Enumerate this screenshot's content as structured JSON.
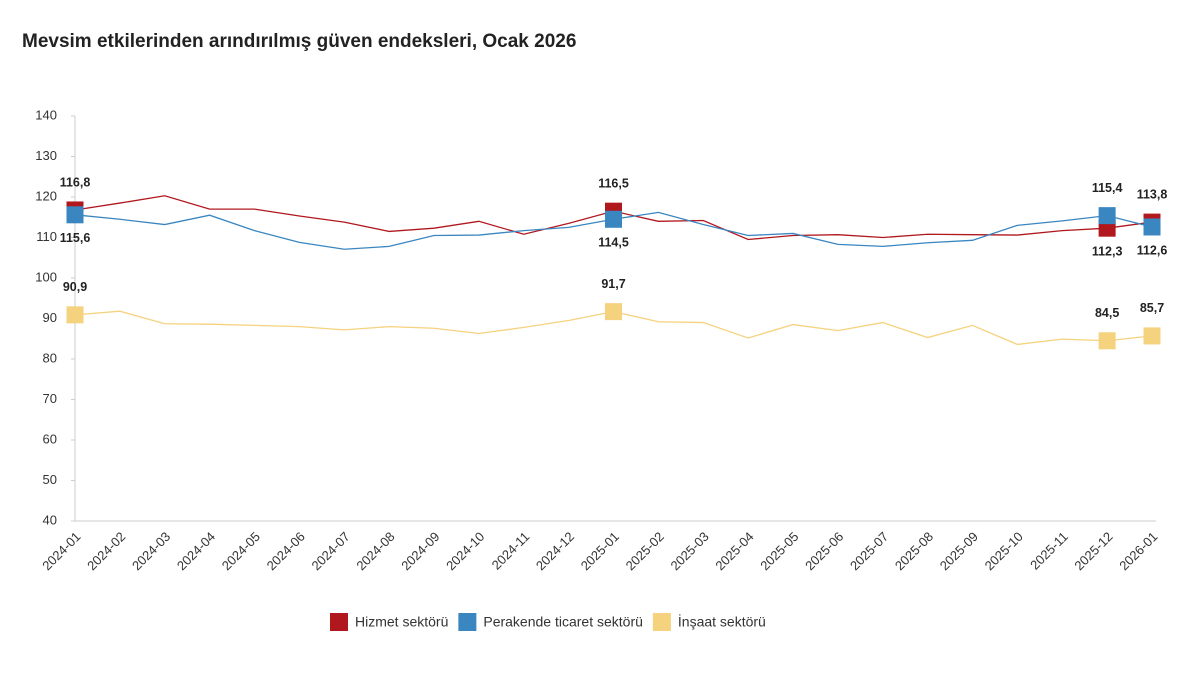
{
  "chart_data": {
    "type": "line",
    "title": "Mevsim etkilerinden arındırılmış güven endeksleri, Ocak 2026",
    "categories": [
      "2024-01",
      "2024-02",
      "2024-03",
      "2024-04",
      "2024-05",
      "2024-06",
      "2024-07",
      "2024-08",
      "2024-09",
      "2024-10",
      "2024-11",
      "2024-12",
      "2025-01",
      "2025-02",
      "2025-03",
      "2025-04",
      "2025-05",
      "2025-06",
      "2025-07",
      "2025-08",
      "2025-09",
      "2025-10",
      "2025-11",
      "2025-12",
      "2026-01"
    ],
    "series": [
      {
        "name": "Hizmet sektörü",
        "color": "#b0181e",
        "values": [
          116.8,
          118.5,
          120.3,
          117,
          117,
          115.3,
          113.8,
          111.5,
          112.3,
          114,
          110.8,
          113.5,
          116.5,
          114,
          114.2,
          109.5,
          110.5,
          110.7,
          110,
          110.8,
          110.7,
          110.6,
          111.7,
          112.3,
          113.8
        ],
        "value_labels": [
          "116,8",
          null,
          null,
          null,
          null,
          null,
          null,
          null,
          null,
          null,
          null,
          null,
          "116,5",
          null,
          null,
          null,
          null,
          null,
          null,
          null,
          null,
          null,
          null,
          "112,3",
          "113,8"
        ]
      },
      {
        "name": "Perakende ticaret sektörü",
        "color": "#3a86c0",
        "values": [
          115.6,
          114.5,
          113.2,
          115.5,
          111.7,
          108.8,
          107.1,
          107.8,
          110.5,
          110.6,
          111.7,
          112.5,
          114.5,
          116.2,
          113.2,
          110.5,
          111,
          108.3,
          107.8,
          108.7,
          109.3,
          113,
          114.1,
          115.4,
          112.6
        ],
        "value_labels": [
          "115,6",
          null,
          null,
          null,
          null,
          null,
          null,
          null,
          null,
          null,
          null,
          null,
          "114,5",
          null,
          null,
          null,
          null,
          null,
          null,
          null,
          null,
          null,
          null,
          "115,4",
          "112,6"
        ]
      },
      {
        "name": "İnşaat sektörü",
        "color": "#f5d27e",
        "values": [
          90.9,
          91.8,
          88.7,
          88.6,
          88.3,
          88,
          87.2,
          88,
          87.6,
          86.3,
          87.8,
          89.5,
          91.7,
          89.2,
          89,
          85.2,
          88.5,
          87,
          89,
          85.3,
          88.3,
          83.6,
          84.9,
          84.5,
          85.7
        ],
        "value_labels": [
          "90,9",
          null,
          null,
          null,
          null,
          null,
          null,
          null,
          null,
          null,
          null,
          null,
          "91,7",
          null,
          null,
          null,
          null,
          null,
          null,
          null,
          null,
          null,
          null,
          "84,5",
          "85,7"
        ]
      }
    ],
    "ylim": [
      40,
      140
    ],
    "yticks": [
      40,
      50,
      60,
      70,
      80,
      90,
      100,
      110,
      120,
      130,
      140
    ],
    "grid": false
  }
}
